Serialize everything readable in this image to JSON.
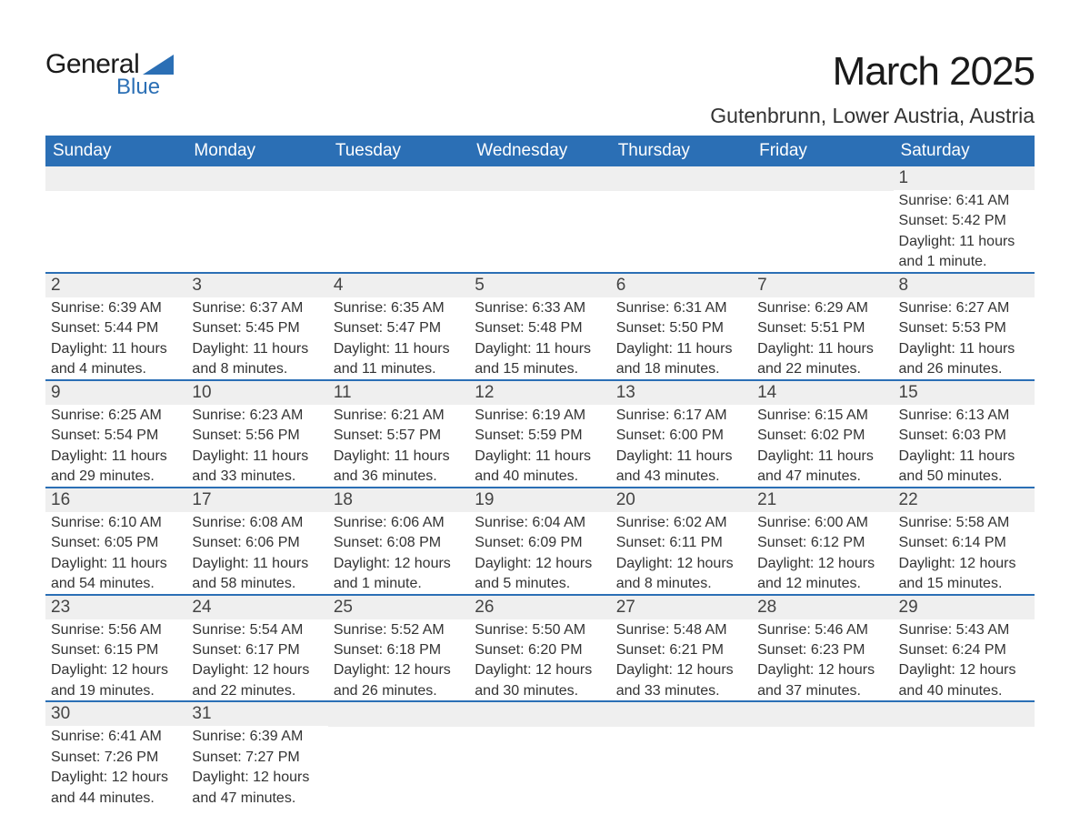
{
  "logo": {
    "text1": "General",
    "text2": "Blue",
    "shape_color": "#2b6fb5"
  },
  "header": {
    "month_title": "March 2025",
    "location": "Gutenbrunn, Lower Austria, Austria"
  },
  "colors": {
    "header_bg": "#2b6fb5",
    "header_fg": "#ffffff",
    "daynum_bg": "#efefef",
    "row_divider": "#2b6fb5",
    "text": "#333333"
  },
  "font": {
    "family": "Arial",
    "title_size": 44,
    "location_size": 23,
    "dayhead_size": 19,
    "body_size": 16
  },
  "day_headers": [
    "Sunday",
    "Monday",
    "Tuesday",
    "Wednesday",
    "Thursday",
    "Friday",
    "Saturday"
  ],
  "weeks": [
    [
      null,
      null,
      null,
      null,
      null,
      null,
      {
        "n": "1",
        "sunrise": "Sunrise: 6:41 AM",
        "sunset": "Sunset: 5:42 PM",
        "day1": "Daylight: 11 hours",
        "day2": "and 1 minute."
      }
    ],
    [
      {
        "n": "2",
        "sunrise": "Sunrise: 6:39 AM",
        "sunset": "Sunset: 5:44 PM",
        "day1": "Daylight: 11 hours",
        "day2": "and 4 minutes."
      },
      {
        "n": "3",
        "sunrise": "Sunrise: 6:37 AM",
        "sunset": "Sunset: 5:45 PM",
        "day1": "Daylight: 11 hours",
        "day2": "and 8 minutes."
      },
      {
        "n": "4",
        "sunrise": "Sunrise: 6:35 AM",
        "sunset": "Sunset: 5:47 PM",
        "day1": "Daylight: 11 hours",
        "day2": "and 11 minutes."
      },
      {
        "n": "5",
        "sunrise": "Sunrise: 6:33 AM",
        "sunset": "Sunset: 5:48 PM",
        "day1": "Daylight: 11 hours",
        "day2": "and 15 minutes."
      },
      {
        "n": "6",
        "sunrise": "Sunrise: 6:31 AM",
        "sunset": "Sunset: 5:50 PM",
        "day1": "Daylight: 11 hours",
        "day2": "and 18 minutes."
      },
      {
        "n": "7",
        "sunrise": "Sunrise: 6:29 AM",
        "sunset": "Sunset: 5:51 PM",
        "day1": "Daylight: 11 hours",
        "day2": "and 22 minutes."
      },
      {
        "n": "8",
        "sunrise": "Sunrise: 6:27 AM",
        "sunset": "Sunset: 5:53 PM",
        "day1": "Daylight: 11 hours",
        "day2": "and 26 minutes."
      }
    ],
    [
      {
        "n": "9",
        "sunrise": "Sunrise: 6:25 AM",
        "sunset": "Sunset: 5:54 PM",
        "day1": "Daylight: 11 hours",
        "day2": "and 29 minutes."
      },
      {
        "n": "10",
        "sunrise": "Sunrise: 6:23 AM",
        "sunset": "Sunset: 5:56 PM",
        "day1": "Daylight: 11 hours",
        "day2": "and 33 minutes."
      },
      {
        "n": "11",
        "sunrise": "Sunrise: 6:21 AM",
        "sunset": "Sunset: 5:57 PM",
        "day1": "Daylight: 11 hours",
        "day2": "and 36 minutes."
      },
      {
        "n": "12",
        "sunrise": "Sunrise: 6:19 AM",
        "sunset": "Sunset: 5:59 PM",
        "day1": "Daylight: 11 hours",
        "day2": "and 40 minutes."
      },
      {
        "n": "13",
        "sunrise": "Sunrise: 6:17 AM",
        "sunset": "Sunset: 6:00 PM",
        "day1": "Daylight: 11 hours",
        "day2": "and 43 minutes."
      },
      {
        "n": "14",
        "sunrise": "Sunrise: 6:15 AM",
        "sunset": "Sunset: 6:02 PM",
        "day1": "Daylight: 11 hours",
        "day2": "and 47 minutes."
      },
      {
        "n": "15",
        "sunrise": "Sunrise: 6:13 AM",
        "sunset": "Sunset: 6:03 PM",
        "day1": "Daylight: 11 hours",
        "day2": "and 50 minutes."
      }
    ],
    [
      {
        "n": "16",
        "sunrise": "Sunrise: 6:10 AM",
        "sunset": "Sunset: 6:05 PM",
        "day1": "Daylight: 11 hours",
        "day2": "and 54 minutes."
      },
      {
        "n": "17",
        "sunrise": "Sunrise: 6:08 AM",
        "sunset": "Sunset: 6:06 PM",
        "day1": "Daylight: 11 hours",
        "day2": "and 58 minutes."
      },
      {
        "n": "18",
        "sunrise": "Sunrise: 6:06 AM",
        "sunset": "Sunset: 6:08 PM",
        "day1": "Daylight: 12 hours",
        "day2": "and 1 minute."
      },
      {
        "n": "19",
        "sunrise": "Sunrise: 6:04 AM",
        "sunset": "Sunset: 6:09 PM",
        "day1": "Daylight: 12 hours",
        "day2": "and 5 minutes."
      },
      {
        "n": "20",
        "sunrise": "Sunrise: 6:02 AM",
        "sunset": "Sunset: 6:11 PM",
        "day1": "Daylight: 12 hours",
        "day2": "and 8 minutes."
      },
      {
        "n": "21",
        "sunrise": "Sunrise: 6:00 AM",
        "sunset": "Sunset: 6:12 PM",
        "day1": "Daylight: 12 hours",
        "day2": "and 12 minutes."
      },
      {
        "n": "22",
        "sunrise": "Sunrise: 5:58 AM",
        "sunset": "Sunset: 6:14 PM",
        "day1": "Daylight: 12 hours",
        "day2": "and 15 minutes."
      }
    ],
    [
      {
        "n": "23",
        "sunrise": "Sunrise: 5:56 AM",
        "sunset": "Sunset: 6:15 PM",
        "day1": "Daylight: 12 hours",
        "day2": "and 19 minutes."
      },
      {
        "n": "24",
        "sunrise": "Sunrise: 5:54 AM",
        "sunset": "Sunset: 6:17 PM",
        "day1": "Daylight: 12 hours",
        "day2": "and 22 minutes."
      },
      {
        "n": "25",
        "sunrise": "Sunrise: 5:52 AM",
        "sunset": "Sunset: 6:18 PM",
        "day1": "Daylight: 12 hours",
        "day2": "and 26 minutes."
      },
      {
        "n": "26",
        "sunrise": "Sunrise: 5:50 AM",
        "sunset": "Sunset: 6:20 PM",
        "day1": "Daylight: 12 hours",
        "day2": "and 30 minutes."
      },
      {
        "n": "27",
        "sunrise": "Sunrise: 5:48 AM",
        "sunset": "Sunset: 6:21 PM",
        "day1": "Daylight: 12 hours",
        "day2": "and 33 minutes."
      },
      {
        "n": "28",
        "sunrise": "Sunrise: 5:46 AM",
        "sunset": "Sunset: 6:23 PM",
        "day1": "Daylight: 12 hours",
        "day2": "and 37 minutes."
      },
      {
        "n": "29",
        "sunrise": "Sunrise: 5:43 AM",
        "sunset": "Sunset: 6:24 PM",
        "day1": "Daylight: 12 hours",
        "day2": "and 40 minutes."
      }
    ],
    [
      {
        "n": "30",
        "sunrise": "Sunrise: 6:41 AM",
        "sunset": "Sunset: 7:26 PM",
        "day1": "Daylight: 12 hours",
        "day2": "and 44 minutes."
      },
      {
        "n": "31",
        "sunrise": "Sunrise: 6:39 AM",
        "sunset": "Sunset: 7:27 PM",
        "day1": "Daylight: 12 hours",
        "day2": "and 47 minutes."
      },
      null,
      null,
      null,
      null,
      null
    ]
  ]
}
